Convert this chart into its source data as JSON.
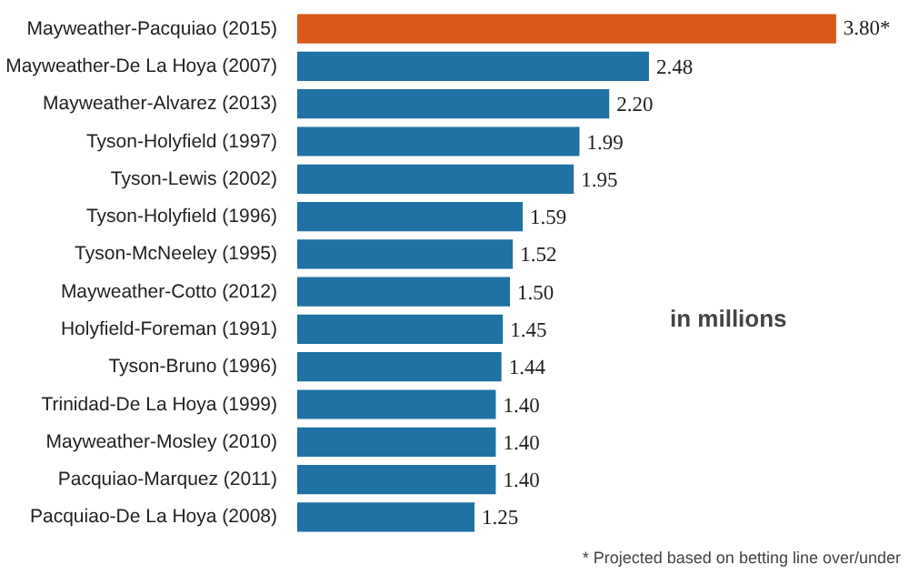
{
  "chart_data": {
    "type": "bar",
    "orientation": "horizontal",
    "categories": [
      "Mayweather-Pacquiao (2015)",
      "Mayweather-De La Hoya (2007)",
      "Mayweather-Alvarez (2013)",
      "Tyson-Holyfield (1997)",
      "Tyson-Lewis (2002)",
      "Tyson-Holyfield (1996)",
      "Tyson-McNeeley (1995)",
      "Mayweather-Cotto (2012)",
      "Holyfield-Foreman (1991)",
      "Tyson-Bruno (1996)",
      "Trinidad-De La Hoya (1999)",
      "Mayweather-Mosley (2010)",
      "Pacquiao-Marquez (2011)",
      "Pacquiao-De La Hoya (2008)"
    ],
    "values": [
      3.8,
      2.48,
      2.2,
      1.99,
      1.95,
      1.59,
      1.52,
      1.5,
      1.45,
      1.44,
      1.4,
      1.4,
      1.4,
      1.25
    ],
    "value_labels": [
      "3.80*",
      "2.48",
      "2.20",
      "1.99",
      "1.95",
      "1.59",
      "1.52",
      "1.50",
      "1.45",
      "1.44",
      "1.40",
      "1.40",
      "1.40",
      "1.25"
    ],
    "colors": [
      "#d9581a",
      "#1f72a3",
      "#1f72a3",
      "#1f72a3",
      "#1f72a3",
      "#1f72a3",
      "#1f72a3",
      "#1f72a3",
      "#1f72a3",
      "#1f72a3",
      "#1f72a3",
      "#1f72a3",
      "#1f72a3",
      "#1f72a3"
    ],
    "annotations": [
      "in millions",
      "* Projected based on betting line over/under"
    ]
  }
}
